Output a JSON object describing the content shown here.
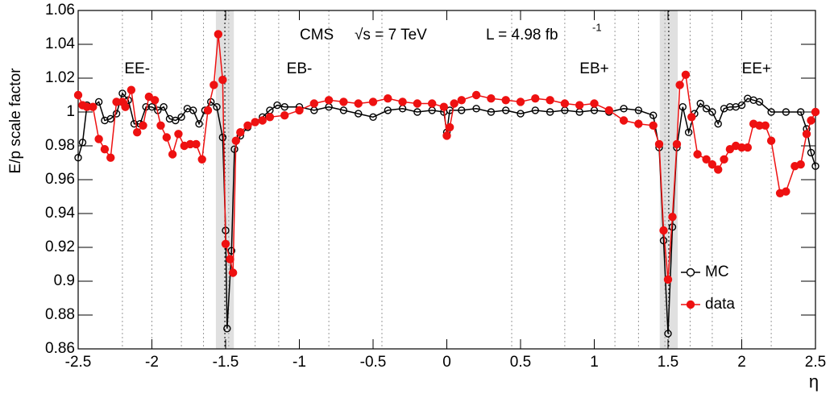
{
  "chart_data": {
    "type": "line",
    "ylabel": "E/p scale factor",
    "xlabel": "η",
    "annotations": [
      "CMS",
      "√s = 7 TeV",
      "L = 4.98 fb",
      "-1"
    ],
    "regions": [
      {
        "label": "EE-",
        "x": -2.1
      },
      {
        "label": "EB-",
        "x": -1.0
      },
      {
        "label": "EB+",
        "x": 1.0
      },
      {
        "label": "EE+",
        "x": 2.1
      }
    ],
    "boundaries": [
      -2.2,
      -2.0,
      -1.8,
      -1.65,
      -1.479,
      -1.3,
      -1.14,
      -0.8,
      -0.44,
      0.44,
      0.8,
      1.14,
      1.3,
      1.479,
      1.65,
      1.8,
      2.0,
      2.2
    ],
    "cracks": [
      [
        -1.566,
        -1.4442
      ],
      [
        1.4442,
        1.566
      ]
    ],
    "xlim": [
      -2.5,
      2.5
    ],
    "xticks": [
      -2.5,
      -2,
      -1.5,
      -1,
      -0.5,
      0,
      0.5,
      1,
      1.5,
      2,
      2.5
    ],
    "ylim": [
      0.86,
      1.06
    ],
    "yticks": [
      0.86,
      0.88,
      0.9,
      0.92,
      0.94,
      0.96,
      0.98,
      1,
      1.02,
      1.04,
      1.06
    ],
    "legend": "lower right",
    "series": [
      {
        "name": "MC",
        "color": "#000000",
        "marker": "open",
        "x": [
          -2.5,
          -2.47,
          -2.44,
          -2.4,
          -2.36,
          -2.32,
          -2.28,
          -2.24,
          -2.2,
          -2.16,
          -2.12,
          -2.08,
          -2.04,
          -2.0,
          -1.96,
          -1.92,
          -1.88,
          -1.84,
          -1.8,
          -1.76,
          -1.72,
          -1.68,
          -1.64,
          -1.6,
          -1.56,
          -1.52,
          -1.5,
          -1.49,
          -1.46,
          -1.44,
          -1.4,
          -1.35,
          -1.3,
          -1.25,
          -1.2,
          -1.15,
          -1.1,
          -1.0,
          -0.9,
          -0.8,
          -0.7,
          -0.6,
          -0.5,
          -0.4,
          -0.3,
          -0.2,
          -0.1,
          -0.02,
          0,
          0.02,
          0.1,
          0.2,
          0.3,
          0.4,
          0.5,
          0.6,
          0.7,
          0.8,
          0.9,
          1.0,
          1.1,
          1.2,
          1.3,
          1.4,
          1.44,
          1.47,
          1.5,
          1.53,
          1.56,
          1.6,
          1.64,
          1.68,
          1.72,
          1.76,
          1.8,
          1.84,
          1.88,
          1.92,
          1.96,
          2.0,
          2.04,
          2.08,
          2.12,
          2.2,
          2.3,
          2.4,
          2.44,
          2.47,
          2.5
        ],
        "values": [
          0.973,
          0.982,
          1.004,
          1.003,
          1.006,
          0.995,
          0.996,
          0.999,
          1.011,
          1.007,
          0.993,
          0.993,
          1.003,
          1.003,
          1.001,
          1.003,
          0.996,
          0.995,
          0.997,
          1.002,
          1.001,
          0.993,
          1.001,
          1.006,
          1.003,
          0.985,
          0.93,
          0.872,
          0.918,
          0.978,
          0.986,
          0.991,
          0.994,
          0.997,
          1.001,
          1.004,
          1.003,
          1.003,
          1.001,
          1.003,
          1.001,
          0.999,
          0.997,
          1.001,
          1.002,
          1.0,
          1.001,
          1.0,
          0.988,
          1.001,
          1.001,
          1.002,
          1.0,
          1.001,
          0.999,
          1.001,
          1.0,
          1.001,
          1.0,
          1.001,
          1.0,
          1.002,
          1.001,
          0.998,
          0.979,
          0.924,
          0.869,
          0.932,
          0.979,
          1.003,
          0.988,
          0.999,
          1.005,
          1.002,
          1.0,
          0.993,
          1.002,
          1.003,
          1.003,
          1.004,
          1.008,
          1.007,
          1.006,
          1.0,
          1.0,
          1.0,
          0.99,
          0.976,
          0.968
        ]
      },
      {
        "name": "data",
        "color": "#ee1111",
        "marker": "filled",
        "x": [
          -2.5,
          -2.47,
          -2.44,
          -2.4,
          -2.36,
          -2.32,
          -2.28,
          -2.24,
          -2.2,
          -2.18,
          -2.14,
          -2.1,
          -2.06,
          -2.02,
          -1.98,
          -1.94,
          -1.9,
          -1.86,
          -1.82,
          -1.78,
          -1.74,
          -1.7,
          -1.66,
          -1.62,
          -1.58,
          -1.55,
          -1.52,
          -1.5,
          -1.47,
          -1.45,
          -1.43,
          -1.4,
          -1.35,
          -1.3,
          -1.25,
          -1.2,
          -1.1,
          -1.0,
          -0.9,
          -0.8,
          -0.7,
          -0.6,
          -0.5,
          -0.4,
          -0.3,
          -0.2,
          -0.1,
          -0.02,
          0,
          0.02,
          0.05,
          0.1,
          0.2,
          0.3,
          0.4,
          0.5,
          0.6,
          0.7,
          0.8,
          0.9,
          1.0,
          1.1,
          1.2,
          1.3,
          1.4,
          1.44,
          1.47,
          1.5,
          1.53,
          1.56,
          1.58,
          1.62,
          1.66,
          1.7,
          1.76,
          1.8,
          1.84,
          1.88,
          1.92,
          1.96,
          2.0,
          2.04,
          2.08,
          2.12,
          2.16,
          2.2,
          2.26,
          2.3,
          2.36,
          2.4,
          2.44,
          2.47,
          2.5
        ],
        "values": [
          1.01,
          1.004,
          1.003,
          1.003,
          0.984,
          0.978,
          0.973,
          1.006,
          1.006,
          1.003,
          1.013,
          0.988,
          0.992,
          1.009,
          1.007,
          0.992,
          0.985,
          0.975,
          0.987,
          0.98,
          0.981,
          0.981,
          0.972,
          1.001,
          1.016,
          1.046,
          1.019,
          0.922,
          0.913,
          0.905,
          0.983,
          0.988,
          0.992,
          0.994,
          0.995,
          0.997,
          0.998,
          1.001,
          1.005,
          1.007,
          1.006,
          1.005,
          1.006,
          1.008,
          1.006,
          1.005,
          1.005,
          1.003,
          0.986,
          0.991,
          1.005,
          1.007,
          1.01,
          1.008,
          1.007,
          1.006,
          1.008,
          1.007,
          1.005,
          1.004,
          1.005,
          1.001,
          0.995,
          0.993,
          0.992,
          0.981,
          0.93,
          0.901,
          0.938,
          0.981,
          1.016,
          1.022,
          0.997,
          0.975,
          0.972,
          0.969,
          0.966,
          0.972,
          0.978,
          0.98,
          0.979,
          0.979,
          0.993,
          0.992,
          0.992,
          0.983,
          0.952,
          0.953,
          0.968,
          0.969,
          0.987,
          0.995,
          1.0
        ]
      }
    ]
  }
}
